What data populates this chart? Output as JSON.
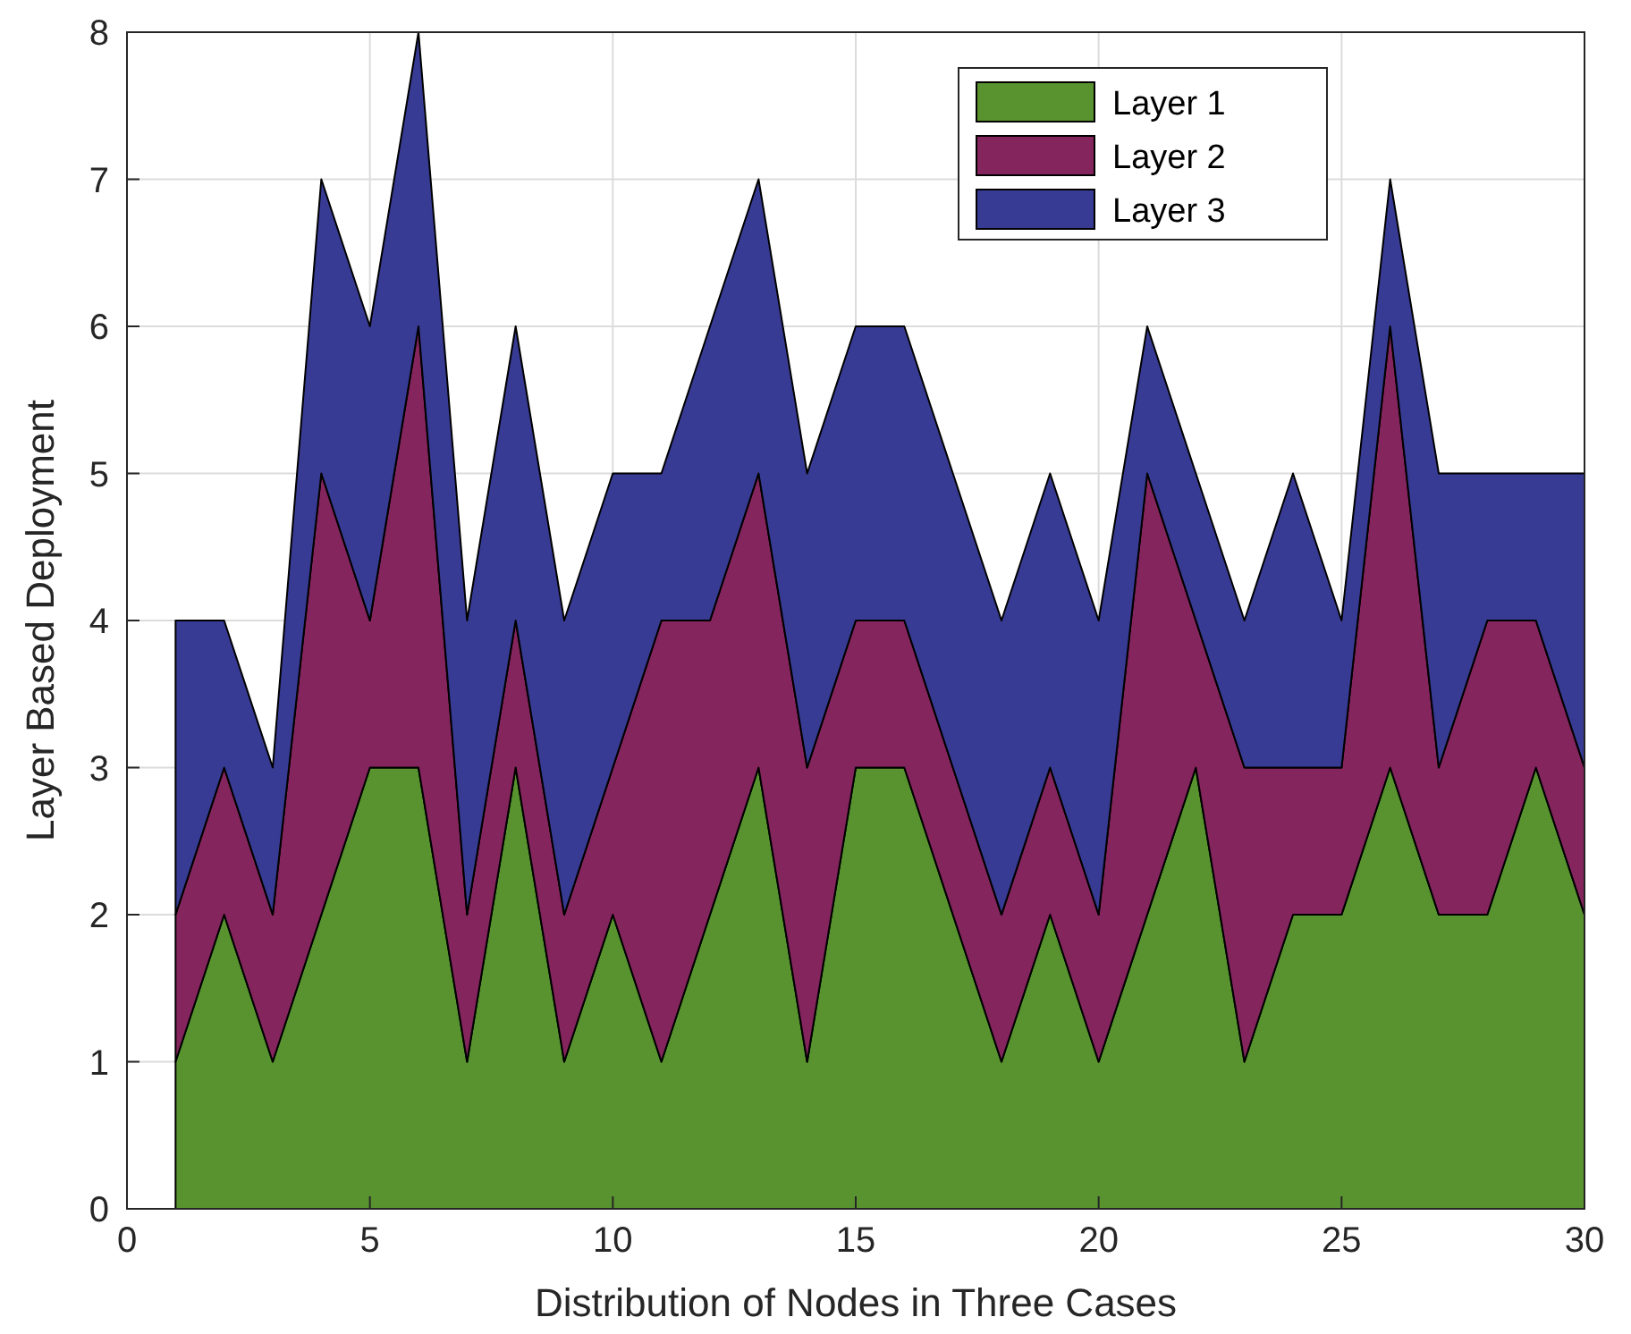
{
  "chart_data": {
    "type": "area",
    "stacked": true,
    "xlabel": "Distribution of Nodes in Three Cases",
    "ylabel": "Layer Based Deployment",
    "x": [
      1,
      2,
      3,
      4,
      5,
      6,
      7,
      8,
      9,
      10,
      11,
      12,
      13,
      14,
      15,
      16,
      17,
      18,
      19,
      20,
      21,
      22,
      23,
      24,
      25,
      26,
      27,
      28,
      29,
      30
    ],
    "series": [
      {
        "name": "Layer 1",
        "color": "#58932f",
        "values": [
          1,
          2,
          1,
          2,
          3,
          3,
          1,
          3,
          1,
          2,
          1,
          2,
          3,
          1,
          3,
          3,
          2,
          1,
          2,
          1,
          2,
          3,
          1,
          2,
          2,
          3,
          2,
          2,
          3,
          2
        ]
      },
      {
        "name": "Layer 2",
        "color": "#85255d",
        "values": [
          1,
          1,
          1,
          3,
          1,
          3,
          1,
          1,
          1,
          1,
          3,
          2,
          2,
          2,
          1,
          1,
          1,
          1,
          1,
          1,
          3,
          1,
          2,
          1,
          1,
          3,
          1,
          2,
          1,
          1
        ]
      },
      {
        "name": "Layer 3",
        "color": "#383b94",
        "values": [
          2,
          1,
          1,
          2,
          2,
          2,
          2,
          2,
          2,
          2,
          1,
          2,
          2,
          2,
          2,
          2,
          2,
          2,
          2,
          2,
          1,
          1,
          1,
          2,
          1,
          1,
          2,
          1,
          1,
          2
        ]
      }
    ],
    "xlim": [
      0,
      30
    ],
    "xticks": [
      0,
      5,
      10,
      15,
      20,
      25,
      30
    ],
    "ylim": [
      0,
      8
    ],
    "yticks": [
      0,
      1,
      2,
      3,
      4,
      5,
      6,
      7,
      8
    ],
    "grid": true,
    "legend": "top right"
  }
}
